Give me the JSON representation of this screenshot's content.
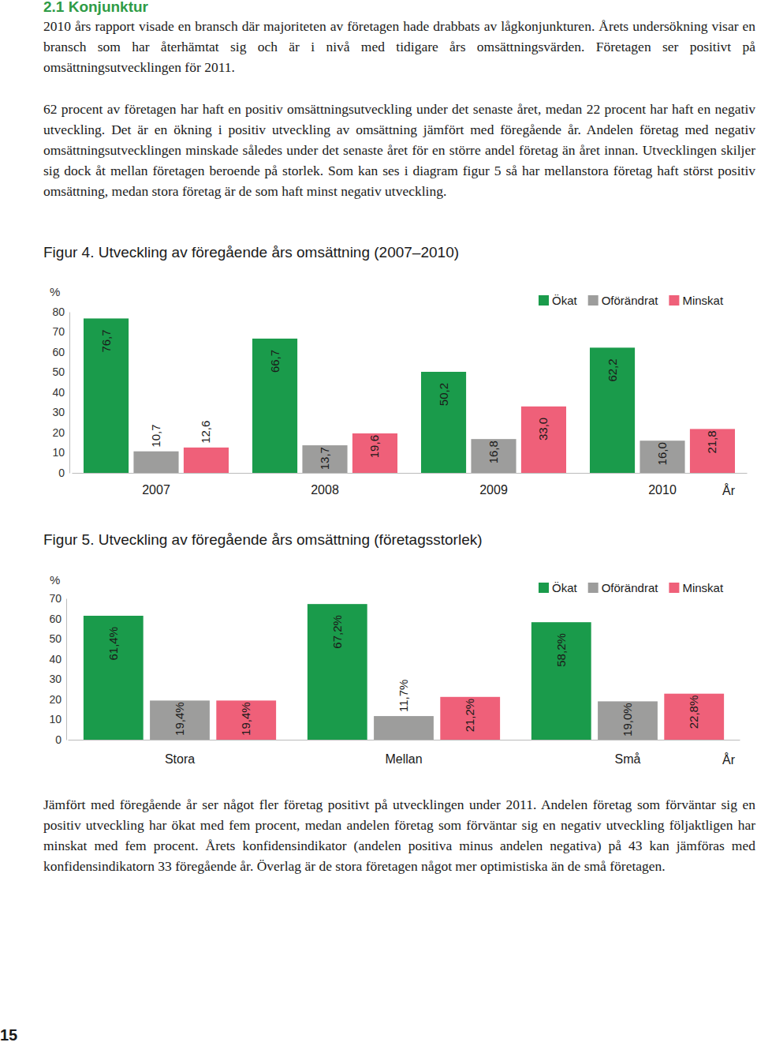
{
  "heading": "2.1 Konjunktur",
  "paragraphs": [
    "2010 års rapport visade en bransch där majoriteten av företagen hade drabbats av lågkonjunkturen. Årets undersökning visar en bransch som har återhämtat sig och är i nivå med tidigare års omsättningsvärden. Företagen ser positivt på omsättningsutvecklingen för 2011.",
    "62 procent av företagen har haft en positiv omsättningsutveckling under det senaste året, medan 22 procent har haft en negativ utveckling. Det är en ökning i positiv utveckling av omsättning jämfört med föregående år. Andelen företag med negativ omsättningsutvecklingen minskade således under det senaste året för en större andel företag än året innan. Utvecklingen skiljer sig dock åt mellan företagen beroende på storlek. Som kan ses i diagram figur 5 så har mellanstora företag haft störst positiv omsättning, medan stora företag är de som haft minst negativ utveckling."
  ],
  "chart_data": [
    {
      "type": "bar",
      "title": "Figur 4. Utveckling av föregående års omsättning (2007–2010)",
      "y_label": "%",
      "x_label": "År",
      "categories": [
        "2007",
        "2008",
        "2009",
        "2010"
      ],
      "series": [
        {
          "name": "Ökat",
          "color": "#1a9b4b",
          "values": [
            76.7,
            66.7,
            50.2,
            62.2
          ],
          "value_labels": [
            "76,7",
            "66,7",
            "50,2",
            "62,2"
          ]
        },
        {
          "name": "Oförändrat",
          "color": "#9d9d9c",
          "values": [
            10.7,
            13.7,
            16.8,
            16.0
          ],
          "value_labels": [
            "10,7",
            "13,7",
            "16,8",
            "16,0"
          ]
        },
        {
          "name": "Minskat",
          "color": "#ef6079",
          "values": [
            12.6,
            19.6,
            33.0,
            21.8
          ],
          "value_labels": [
            "12,6",
            "19,6",
            "33,0",
            "21,8"
          ]
        }
      ],
      "ylim": [
        0,
        80
      ],
      "yticks": [
        0,
        10,
        20,
        30,
        40,
        50,
        60,
        70,
        80
      ],
      "legend": "top right",
      "data_labels": true,
      "grid": false
    },
    {
      "type": "bar",
      "title": "Figur 5. Utveckling av föregående års omsättning (företagsstorlek)",
      "y_label": "%",
      "x_label": "År",
      "categories": [
        "Stora",
        "Mellan",
        "Små"
      ],
      "series": [
        {
          "name": "Ökat",
          "color": "#1a9b4b",
          "values": [
            61.4,
            67.2,
            58.2
          ],
          "value_labels": [
            "61,4%",
            "67,2%",
            "58,2%"
          ]
        },
        {
          "name": "Oförändrat",
          "color": "#9d9d9c",
          "values": [
            19.4,
            11.7,
            19.0
          ],
          "value_labels": [
            "19,4%",
            "11,7%",
            "19,0%"
          ]
        },
        {
          "name": "Minskat",
          "color": "#ef6079",
          "values": [
            19.4,
            21.2,
            22.8
          ],
          "value_labels": [
            "19,4%",
            "21,2%",
            "22,8%"
          ]
        }
      ],
      "ylim": [
        0,
        70
      ],
      "yticks": [
        0,
        10,
        20,
        30,
        40,
        50,
        60,
        70
      ],
      "legend": "top right",
      "data_labels": true,
      "grid": false
    }
  ],
  "closing_paragraph": "Jämfört med föregående år ser något fler företag positivt på utvecklingen under 2011. Andelen företag som förväntar sig en positiv utveckling har ökat med fem procent, medan andelen företag som förväntar sig en negativ utveckling följaktligen har minskat med fem procent. Årets konfidensindikator (andelen positiva minus andelen negativa) på 43 kan jämföras med konfidensindikatorn 33 föregående år. Överlag är de stora företagen något mer optimistiska än de små företagen.",
  "page_number": "15"
}
